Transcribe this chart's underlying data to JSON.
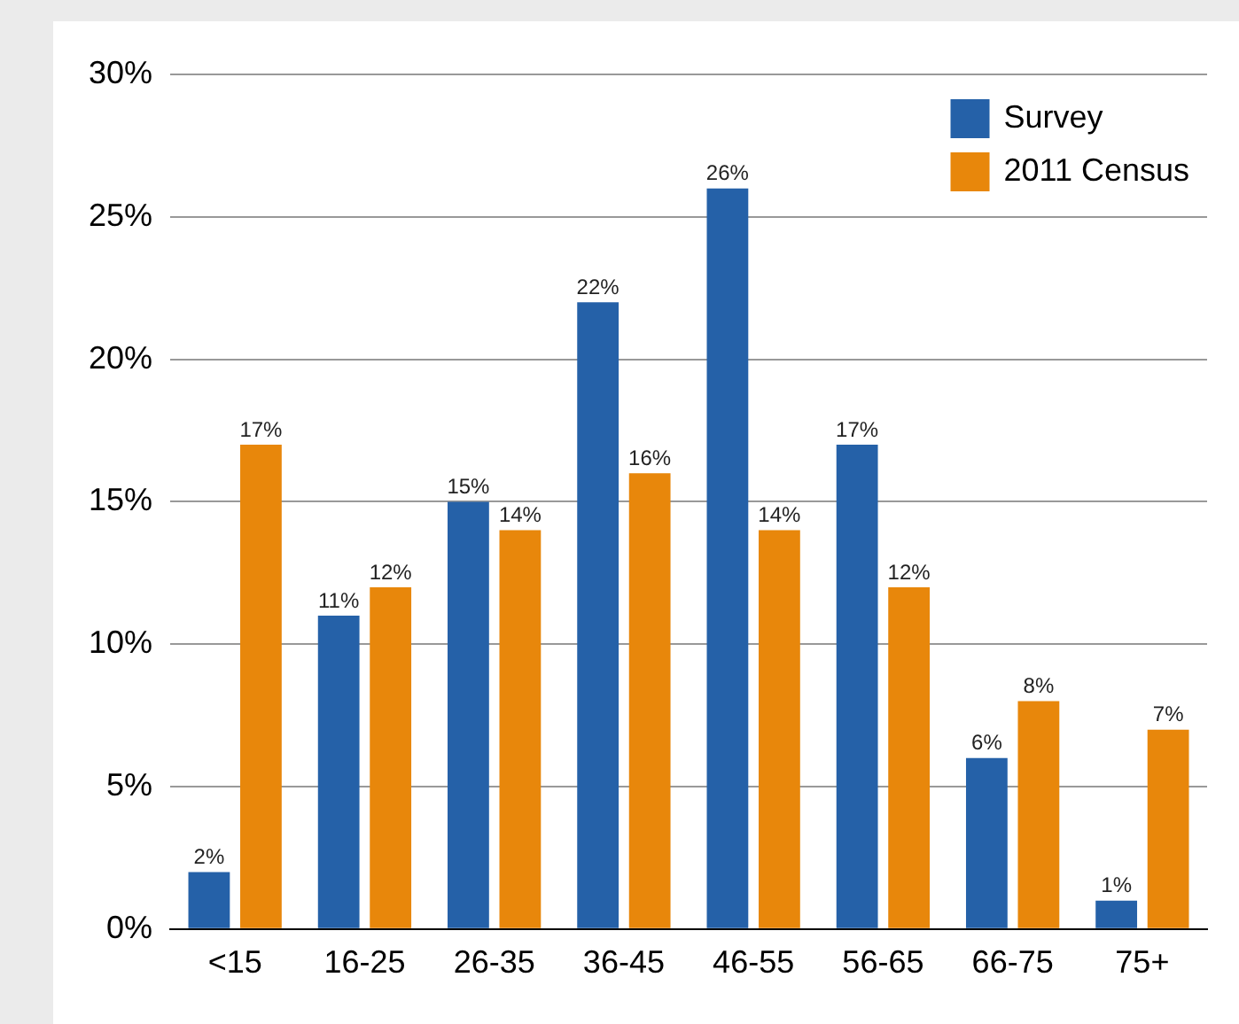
{
  "chart_data": {
    "type": "bar",
    "categories": [
      "<15",
      "16-25",
      "26-35",
      "36-45",
      "46-55",
      "56-65",
      "66-75",
      "75+"
    ],
    "series": [
      {
        "name": "Survey",
        "color": "#2561a8",
        "values": [
          2,
          11,
          15,
          22,
          26,
          17,
          6,
          1
        ],
        "value_labels": [
          "2%",
          "11%",
          "15%",
          "22%",
          "26%",
          "17%",
          "6%",
          "1%"
        ]
      },
      {
        "name": "2011 Census",
        "color": "#e8870b",
        "values": [
          17,
          12,
          14,
          16,
          14,
          12,
          8,
          7
        ],
        "value_labels": [
          "17%",
          "12%",
          "14%",
          "16%",
          "14%",
          "12%",
          "8%",
          "7%"
        ]
      }
    ],
    "ylim": [
      0,
      30
    ],
    "yticks": [
      {
        "value": 0,
        "label": "0%"
      },
      {
        "value": 5,
        "label": "5%"
      },
      {
        "value": 10,
        "label": "10%"
      },
      {
        "value": 15,
        "label": "15%"
      },
      {
        "value": 20,
        "label": "20%"
      },
      {
        "value": 25,
        "label": "25%"
      },
      {
        "value": 30,
        "label": "30%"
      }
    ],
    "grid": "y",
    "legend": "top right"
  }
}
